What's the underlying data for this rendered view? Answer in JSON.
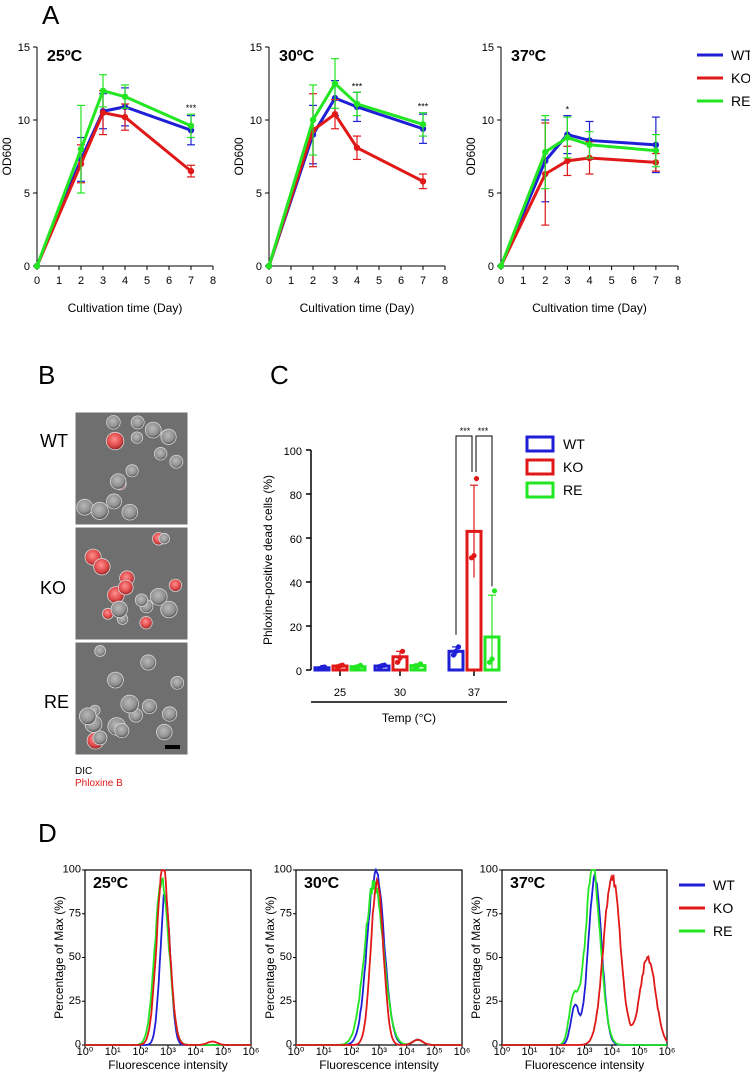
{
  "colors": {
    "WT": "#1f1fd6",
    "KO": "#e01818",
    "RE": "#22e622"
  },
  "panels": {
    "A": "A",
    "B": "B",
    "C": "C",
    "D": "D"
  },
  "legend": [
    "WT",
    "KO",
    "RE"
  ],
  "panelB": {
    "rows": [
      "WT",
      "KO",
      "RE"
    ],
    "caption_line1": "DIC",
    "caption_line2": "Phloxine B"
  },
  "chart_data": [
    {
      "id": "A-25",
      "type": "line",
      "temp_label": "25ºC",
      "xlabel": "Cultivation time (Day)",
      "ylabel": "OD600",
      "xlim": [
        0,
        8
      ],
      "ylim": [
        0,
        15
      ],
      "x_ticks": [
        0,
        1,
        2,
        3,
        4,
        5,
        6,
        7,
        8
      ],
      "y_ticks": [
        0,
        5,
        10,
        15
      ],
      "x": [
        0,
        2,
        3,
        4,
        7
      ],
      "series": [
        {
          "name": "WT",
          "values": [
            0,
            7.3,
            10.6,
            10.9,
            9.3
          ],
          "err": [
            0,
            1.5,
            1.2,
            1.3,
            1.0
          ]
        },
        {
          "name": "KO",
          "values": [
            0,
            7.0,
            10.5,
            10.2,
            6.5
          ],
          "err": [
            0,
            1.3,
            1.5,
            0.9,
            0.4
          ]
        },
        {
          "name": "RE",
          "values": [
            0,
            8.0,
            12.0,
            11.6,
            9.6
          ],
          "err": [
            0,
            3.0,
            1.1,
            0.8,
            0.8
          ]
        }
      ],
      "annotations": [
        {
          "x": 7,
          "text": "***"
        }
      ]
    },
    {
      "id": "A-30",
      "type": "line",
      "temp_label": "30ºC",
      "xlabel": "Cultivation time (Day)",
      "ylabel": "OD600",
      "xlim": [
        0,
        8
      ],
      "ylim": [
        0,
        15
      ],
      "x_ticks": [
        0,
        1,
        2,
        3,
        4,
        5,
        6,
        7,
        8
      ],
      "y_ticks": [
        0,
        5,
        10,
        15
      ],
      "x": [
        0,
        2,
        3,
        4,
        7
      ],
      "series": [
        {
          "name": "WT",
          "values": [
            0,
            9.0,
            11.5,
            10.9,
            9.4
          ],
          "err": [
            0,
            2.0,
            1.2,
            1.0,
            1.0
          ]
        },
        {
          "name": "KO",
          "values": [
            0,
            9.3,
            10.4,
            8.1,
            5.8
          ],
          "err": [
            0,
            2.5,
            1.0,
            0.8,
            0.5
          ]
        },
        {
          "name": "RE",
          "values": [
            0,
            10.0,
            12.5,
            11.1,
            9.7
          ],
          "err": [
            0,
            2.4,
            1.7,
            0.8,
            0.8
          ]
        }
      ],
      "annotations": [
        {
          "x": 4,
          "text": "***"
        },
        {
          "x": 7,
          "text": "***"
        }
      ]
    },
    {
      "id": "A-37",
      "type": "line",
      "temp_label": "37ºC",
      "xlabel": "Cultivation time (Day)",
      "ylabel": "OD600",
      "xlim": [
        0,
        8
      ],
      "ylim": [
        0,
        15
      ],
      "x_ticks": [
        0,
        1,
        2,
        3,
        4,
        5,
        6,
        7,
        8
      ],
      "y_ticks": [
        0,
        5,
        10,
        15
      ],
      "x": [
        0,
        2,
        3,
        4,
        7
      ],
      "series": [
        {
          "name": "WT",
          "values": [
            0,
            7.2,
            9.0,
            8.6,
            8.3
          ],
          "err": [
            0,
            2.8,
            1.3,
            1.3,
            1.9
          ]
        },
        {
          "name": "KO",
          "values": [
            0,
            6.3,
            7.2,
            7.4,
            7.1
          ],
          "err": [
            0,
            3.5,
            1.0,
            1.1,
            0.6
          ]
        },
        {
          "name": "RE",
          "values": [
            0,
            7.8,
            8.8,
            8.3,
            7.9
          ],
          "err": [
            0,
            2.5,
            1.4,
            0.9,
            1.1
          ]
        }
      ],
      "annotations": [
        {
          "x": 3,
          "text": "*"
        }
      ]
    },
    {
      "id": "C",
      "type": "bar",
      "xlabel": "Temp (°C)",
      "ylabel": "Phloxine-positive dead cells (%)",
      "ylim": [
        0,
        100
      ],
      "y_ticks": [
        0,
        20,
        40,
        60,
        80,
        100
      ],
      "categories": [
        "25",
        "30",
        "37"
      ],
      "series": [
        {
          "name": "WT",
          "values": [
            1.0,
            1.8,
            8.5
          ],
          "err": [
            0.4,
            0.6,
            2.0
          ],
          "points": [
            [
              0.6,
              1.2,
              1.4
            ],
            [
              1.4,
              2.0,
              2.2
            ],
            [
              6.8,
              8.5,
              10.5
            ]
          ]
        },
        {
          "name": "KO",
          "values": [
            1.8,
            6.0,
            63
          ],
          "err": [
            0.5,
            2.5,
            21
          ],
          "points": [
            [
              1.4,
              1.9,
              2.2
            ],
            [
              3.5,
              5.5,
              8.5
            ],
            [
              51,
              52,
              87
            ]
          ]
        },
        {
          "name": "RE",
          "values": [
            1.5,
            2.0,
            15
          ],
          "err": [
            0.6,
            0.8,
            19
          ],
          "points": [
            [
              0.8,
              1.6,
              2.1
            ],
            [
              1.2,
              2.0,
              2.8
            ],
            [
              3.5,
              5.0,
              36
            ]
          ]
        }
      ],
      "annotations": [
        {
          "text": "***",
          "between": [
            "WT",
            "KO"
          ]
        },
        {
          "text": "***",
          "between": [
            "KO",
            "RE"
          ]
        }
      ]
    },
    {
      "id": "D-25",
      "type": "area",
      "temp_label": "25ºC",
      "xlabel": "Fluorescence intensity",
      "ylabel": "Percentage of Max (%)",
      "x_ticks": [
        "10⁰",
        "10¹",
        "10²",
        "10³",
        "10⁴",
        "10⁵",
        "10⁶"
      ],
      "y_ticks": [
        0,
        25,
        50,
        75,
        100
      ],
      "ylim": [
        0,
        100
      ],
      "x_log10": [
        0,
        6
      ],
      "series": [
        {
          "name": "WT",
          "peak": 2.9,
          "width": 0.18,
          "height": 87,
          "second": null
        },
        {
          "name": "KO",
          "peak": 2.82,
          "width": 0.23,
          "height": 100,
          "second": {
            "peak": 4.6,
            "width": 0.18,
            "height": 2
          }
        },
        {
          "name": "RE",
          "peak": 2.78,
          "width": 0.25,
          "height": 95,
          "second": null
        }
      ]
    },
    {
      "id": "D-30",
      "type": "area",
      "temp_label": "30ºC",
      "xlabel": "Fluorescence intensity",
      "ylabel": "Percentage of Max (%)",
      "x_ticks": [
        "10⁰",
        "10¹",
        "10²",
        "10³",
        "10⁴",
        "10⁵",
        "10⁶"
      ],
      "y_ticks": [
        0,
        25,
        50,
        75,
        100
      ],
      "ylim": [
        0,
        100
      ],
      "x_log10": [
        0,
        6
      ],
      "series": [
        {
          "name": "WT",
          "peak": 2.88,
          "width": 0.3,
          "height": 100,
          "second": {
            "peak": 4.4,
            "width": 0.18,
            "height": 3
          }
        },
        {
          "name": "KO",
          "peak": 2.93,
          "width": 0.22,
          "height": 95,
          "second": {
            "peak": 4.4,
            "width": 0.18,
            "height": 3
          }
        },
        {
          "name": "RE",
          "peak": 2.82,
          "width": 0.34,
          "height": 92,
          "second": {
            "peak": 4.4,
            "width": 0.18,
            "height": 3
          }
        }
      ]
    },
    {
      "id": "D-37",
      "type": "area",
      "temp_label": "37ºC",
      "xlabel": "Fluorescence intensity",
      "ylabel": "Percentage of Max (%)",
      "x_ticks": [
        "10⁰",
        "10¹",
        "10²",
        "10³",
        "10⁴",
        "10⁵",
        "10⁶"
      ],
      "y_ticks": [
        0,
        25,
        50,
        75,
        100
      ],
      "ylim": [
        0,
        100
      ],
      "x_log10": [
        0,
        6
      ],
      "series": [
        {
          "name": "WT",
          "peak": 3.38,
          "width": 0.24,
          "height": 97,
          "second": {
            "peak": 2.65,
            "width": 0.15,
            "height": 22
          }
        },
        {
          "name": "KO",
          "peak": 4.0,
          "width": 0.3,
          "height": 97,
          "second": {
            "peak": 5.3,
            "width": 0.28,
            "height": 50
          }
        },
        {
          "name": "RE",
          "peak": 3.3,
          "width": 0.28,
          "height": 100,
          "second": {
            "peak": 2.6,
            "width": 0.16,
            "height": 26
          }
        }
      ]
    }
  ]
}
